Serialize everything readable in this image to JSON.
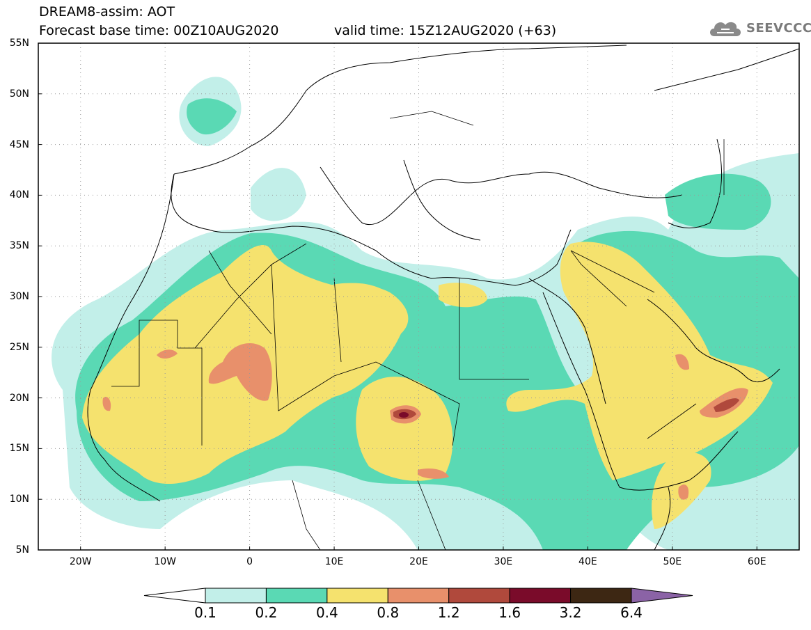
{
  "header": {
    "title": "DREAM8-assim: AOT",
    "base_time": "Forecast base time: 00Z10AUG2020",
    "valid_time": "valid time: 15Z12AUG2020 (+63)"
  },
  "logo": {
    "text": "SEEVCCC",
    "icon": "cloud-icon",
    "color": "#7a7a7a"
  },
  "map": {
    "projection": "lat-lon",
    "lon_range": [
      -25,
      65
    ],
    "lat_range": [
      5,
      55
    ],
    "lat_labels": [
      "55N",
      "50N",
      "45N",
      "40N",
      "35N",
      "30N",
      "25N",
      "20N",
      "15N",
      "10N",
      "5N"
    ],
    "lon_labels": [
      "20W",
      "10W",
      "0",
      "10E",
      "20E",
      "30E",
      "40E",
      "50E",
      "60E"
    ],
    "gridlines": "dotted"
  },
  "colorbar": {
    "levels": [
      "0.1",
      "0.2",
      "0.4",
      "0.8",
      "1.2",
      "1.6",
      "3.2",
      "6.4"
    ],
    "colors": [
      "#ffffff",
      "#c2efe9",
      "#5ad9b4",
      "#f5e26e",
      "#e8906b",
      "#b0493c",
      "#7a0b2a",
      "#3d2713",
      "#8b63a6"
    ]
  }
}
